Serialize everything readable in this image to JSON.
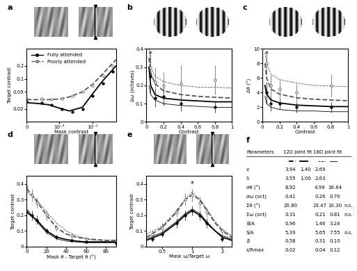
{
  "chart_data": [
    {
      "type": "line",
      "label": "a",
      "x_label": "Mask contrast",
      "y_label": "Target contrast",
      "log": true,
      "legend": "upper left",
      "xlim": [
        0,
        0.5
      ],
      "xticks": [
        0,
        {
          "value": 0.01,
          "label": "10⁻²"
        },
        {
          "value": 0.1,
          "label": "10⁻¹"
        }
      ],
      "ylim": [
        0.01,
        0.5
      ],
      "yticks": [
        0.02,
        0.05,
        0.1,
        0.2
      ],
      "series": [
        {
          "name": "Fully attended",
          "color": "#000000",
          "marker": "filled_circle",
          "line_style": "solid",
          "x": [
            0,
            0.003,
            0.006,
            0.012,
            0.025,
            0.05,
            0.1,
            0.2,
            0.4
          ],
          "values": [
            0.03,
            0.028,
            0.025,
            0.02,
            0.017,
            0.02,
            0.04,
            0.08,
            0.15
          ],
          "fit_x": [
            0,
            0.002,
            0.005,
            0.01,
            0.02,
            0.05,
            0.1,
            0.2,
            0.5
          ],
          "fit_values": [
            0.028,
            0.027,
            0.025,
            0.021,
            0.018,
            0.022,
            0.045,
            0.09,
            0.2
          ]
        },
        {
          "name": "Poorly attended",
          "color": "#555555",
          "marker": "open_circle",
          "line_style": "dashed",
          "x": [
            0,
            0.003,
            0.006,
            0.012,
            0.025,
            0.05,
            0.1,
            0.2,
            0.4
          ],
          "values": [
            0.035,
            0.035,
            0.033,
            0.035,
            0.04,
            0.05,
            0.07,
            0.12,
            0.2
          ],
          "fit_x": [
            0,
            0.002,
            0.005,
            0.01,
            0.02,
            0.05,
            0.1,
            0.2,
            0.5
          ],
          "fit_values": [
            0.033,
            0.033,
            0.033,
            0.034,
            0.038,
            0.05,
            0.075,
            0.13,
            0.28
          ]
        }
      ]
    },
    {
      "type": "line",
      "label": "b",
      "x_label": "Contrast",
      "y_label": "Δω (octaves)",
      "xlim": [
        0,
        1
      ],
      "xticks": [
        0,
        0.2,
        0.4,
        0.6,
        0.8,
        1
      ],
      "ylim": [
        0,
        0.4
      ],
      "yticks": [
        0,
        0.1,
        0.2,
        0.3,
        0.4
      ],
      "annotations": [
        {
          "x": 0.05,
          "y": 0.37,
          "text": "*"
        }
      ],
      "series": [
        {
          "name": "Fully attended",
          "color": "#000000",
          "marker": "filled_circle",
          "line_style": "solid",
          "x": [
            0.05,
            0.1,
            0.2,
            0.4,
            0.8
          ],
          "values": [
            0.25,
            0.13,
            0.14,
            0.1,
            0.08
          ],
          "errors": [
            0.1,
            0.05,
            0.05,
            0.04,
            0.03
          ],
          "fit_x": [
            0.03,
            0.05,
            0.1,
            0.2,
            0.4,
            0.6,
            0.8,
            1
          ],
          "fit_values": [
            0.3,
            0.2,
            0.15,
            0.13,
            0.12,
            0.115,
            0.11,
            0.11
          ],
          "fit18_x": [
            0.03,
            0.05,
            0.1,
            0.2,
            0.4,
            0.6,
            0.8,
            1
          ],
          "fit18_values": [
            0.2,
            0.15,
            0.12,
            0.1,
            0.09,
            0.085,
            0.08,
            0.08
          ]
        },
        {
          "name": "Poorly attended",
          "color": "#555555",
          "marker": "open_circle",
          "line_style": "dashed",
          "x": [
            0.05,
            0.1,
            0.2,
            0.4,
            0.8
          ],
          "values": [
            0.3,
            0.22,
            0.2,
            0.21,
            0.23
          ],
          "errors": [
            0.08,
            0.08,
            0.07,
            0.1,
            0.08
          ],
          "fit_x": [
            0.03,
            0.05,
            0.1,
            0.2,
            0.4,
            0.6,
            0.8,
            1
          ],
          "fit_values": [
            0.35,
            0.27,
            0.21,
            0.17,
            0.15,
            0.14,
            0.135,
            0.13
          ],
          "fit18_x": [
            0.03,
            0.05,
            0.1,
            0.2,
            0.4,
            0.6,
            0.8,
            1
          ],
          "fit18_values": [
            0.4,
            0.3,
            0.25,
            0.22,
            0.2,
            0.19,
            0.19,
            0.185
          ]
        }
      ]
    },
    {
      "type": "line",
      "label": "c",
      "x_label": "Contrast",
      "y_label": "Δθ (°)",
      "xlim": [
        0,
        1
      ],
      "xticks": [
        0,
        0.2,
        0.4,
        0.6,
        0.8,
        1
      ],
      "ylim": [
        0,
        10
      ],
      "yticks": [
        0,
        2,
        4,
        6,
        8,
        10
      ],
      "annotations": [
        {
          "x": 0.05,
          "y": 9.3,
          "text": "*"
        }
      ],
      "series": [
        {
          "name": "Fully attended",
          "color": "#000000",
          "marker": "filled_circle",
          "line_style": "solid",
          "x": [
            0.05,
            0.1,
            0.2,
            0.4,
            0.8
          ],
          "values": [
            4,
            2.5,
            2.5,
            2,
            2
          ],
          "errors": [
            1.5,
            1,
            0.8,
            0.7,
            0.7
          ],
          "fit_x": [
            0.03,
            0.05,
            0.1,
            0.2,
            0.4,
            0.6,
            0.8,
            1
          ],
          "fit_values": [
            5,
            3.8,
            3,
            2.6,
            2.3,
            2.2,
            2.1,
            2.1
          ],
          "fit18_x": [
            0.03,
            0.05,
            0.1,
            0.2,
            0.4,
            0.6,
            0.8,
            1
          ],
          "fit18_values": [
            3.5,
            2.5,
            2,
            1.7,
            1.5,
            1.5,
            1.4,
            1.4
          ]
        },
        {
          "name": "Poorly attended",
          "color": "#555555",
          "marker": "open_circle",
          "line_style": "dashed",
          "x": [
            0.05,
            0.1,
            0.2,
            0.4,
            0.8
          ],
          "values": [
            8,
            5,
            4.5,
            4,
            5
          ],
          "errors": [
            1.5,
            1.5,
            1.2,
            1.2,
            1.5
          ],
          "fit_x": [
            0.03,
            0.05,
            0.1,
            0.2,
            0.4,
            0.6,
            0.8,
            1
          ],
          "fit_values": [
            8,
            6,
            4.5,
            3.8,
            3.3,
            3.1,
            3,
            2.9
          ],
          "fit18_x": [
            0.03,
            0.05,
            0.1,
            0.2,
            0.4,
            0.6,
            0.8,
            1
          ],
          "fit18_values": [
            9.5,
            8,
            6.5,
            5.8,
            5.3,
            5,
            4.9,
            4.8
          ]
        }
      ]
    },
    {
      "type": "line",
      "label": "d",
      "x_label": "Mask θ - Target θ (°)",
      "y_label": "Target contrast",
      "xlim": [
        0,
        90
      ],
      "xticks": [
        0,
        20,
        40,
        60,
        80
      ],
      "ylim": [
        0,
        0.45
      ],
      "yticks": [
        0,
        0.1,
        0.2,
        0.3,
        0.4
      ],
      "series": [
        {
          "name": "Fully attended",
          "color": "#000000",
          "marker": "filled_circle",
          "line_style": "solid",
          "x": [
            0,
            5,
            10,
            20,
            30,
            45,
            60,
            90
          ],
          "values": [
            0.22,
            0.2,
            0.17,
            0.1,
            0.06,
            0.04,
            0.03,
            0.02
          ],
          "errors": [
            0.03,
            0.03,
            0.03,
            0.02,
            0.015,
            0.01,
            0.01,
            0.01
          ],
          "fit_x": [
            0,
            10,
            20,
            30,
            40,
            50,
            60,
            70,
            80,
            90
          ],
          "fit_values": [
            0.22,
            0.17,
            0.1,
            0.06,
            0.045,
            0.035,
            0.03,
            0.03,
            0.03,
            0.03
          ],
          "fit18_x": [
            0,
            10,
            20,
            30,
            40,
            50,
            60,
            70,
            80,
            90
          ],
          "fit18_values": [
            0.24,
            0.16,
            0.09,
            0.05,
            0.035,
            0.03,
            0.025,
            0.025,
            0.025,
            0.025
          ]
        },
        {
          "name": "Poorly attended",
          "color": "#555555",
          "marker": "open_circle",
          "line_style": "dashed",
          "x": [
            0,
            5,
            10,
            20,
            30,
            45,
            60,
            90
          ],
          "values": [
            0.38,
            0.33,
            0.28,
            0.2,
            0.12,
            0.07,
            0.05,
            0.04
          ],
          "errors": [
            0.04,
            0.04,
            0.03,
            0.03,
            0.02,
            0.015,
            0.01,
            0.01
          ],
          "fit_x": [
            0,
            10,
            20,
            30,
            40,
            50,
            60,
            70,
            80,
            90
          ],
          "fit_values": [
            0.37,
            0.29,
            0.2,
            0.12,
            0.08,
            0.06,
            0.05,
            0.045,
            0.04,
            0.04
          ],
          "fit18_x": [
            0,
            10,
            20,
            30,
            40,
            50,
            60,
            70,
            80,
            90
          ],
          "fit18_values": [
            0.35,
            0.3,
            0.22,
            0.15,
            0.1,
            0.07,
            0.05,
            0.04,
            0.04,
            0.04
          ]
        }
      ]
    },
    {
      "type": "line",
      "label": "e",
      "x_label": "Mask ω/Target ω",
      "y_label": "Target contrast",
      "log": "x",
      "xlim": [
        0.35,
        2.5
      ],
      "xticks": [
        0.5,
        1,
        2
      ],
      "ylim": [
        0,
        0.45
      ],
      "yticks": [
        0,
        0.1,
        0.2,
        0.3,
        0.4
      ],
      "annotations": [
        {
          "x": 1,
          "y": 0.4,
          "text": "*"
        }
      ],
      "series": [
        {
          "name": "Fully attended",
          "color": "#000000",
          "marker": "filled_circle",
          "line_style": "solid",
          "x": [
            0.4,
            0.5,
            0.7,
            0.85,
            1,
            1.2,
            1.4,
            2
          ],
          "values": [
            0.05,
            0.08,
            0.15,
            0.2,
            0.23,
            0.2,
            0.15,
            0.05
          ],
          "errors": [
            0.02,
            0.02,
            0.03,
            0.03,
            0.03,
            0.03,
            0.03,
            0.02
          ],
          "fit_x": [
            0.35,
            0.5,
            0.7,
            0.85,
            1,
            1.2,
            1.4,
            1.7,
            2,
            2.5
          ],
          "fit_values": [
            0.04,
            0.08,
            0.15,
            0.2,
            0.23,
            0.2,
            0.15,
            0.1,
            0.06,
            0.04
          ],
          "fit18_x": [
            0.35,
            0.5,
            0.7,
            0.85,
            1,
            1.2,
            1.4,
            1.7,
            2,
            2.5
          ],
          "fit18_values": [
            0.05,
            0.09,
            0.16,
            0.21,
            0.24,
            0.21,
            0.16,
            0.1,
            0.07,
            0.05
          ]
        },
        {
          "name": "Poorly attended",
          "color": "#555555",
          "marker": "open_circle",
          "line_style": "dashed",
          "x": [
            0.4,
            0.5,
            0.7,
            0.85,
            1,
            1.2,
            1.4,
            2
          ],
          "values": [
            0.08,
            0.12,
            0.22,
            0.3,
            0.33,
            0.28,
            0.22,
            0.1
          ],
          "errors": [
            0.02,
            0.03,
            0.03,
            0.04,
            0.04,
            0.04,
            0.03,
            0.02
          ],
          "fit_x": [
            0.35,
            0.5,
            0.7,
            0.85,
            1,
            1.2,
            1.4,
            1.7,
            2,
            2.5
          ],
          "fit_values": [
            0.06,
            0.12,
            0.22,
            0.3,
            0.33,
            0.3,
            0.23,
            0.15,
            0.1,
            0.06
          ],
          "fit18_x": [
            0.35,
            0.5,
            0.7,
            0.85,
            1,
            1.2,
            1.4,
            1.7,
            2,
            2.5
          ],
          "fit18_values": [
            0.08,
            0.13,
            0.23,
            0.3,
            0.35,
            0.3,
            0.24,
            0.16,
            0.11,
            0.07
          ]
        }
      ]
    }
  ],
  "table": {
    "label": "f",
    "columns": [
      "Parameters",
      "12D joint fit",
      "18D joint fit"
    ],
    "rows": [
      [
        "γ",
        "3.94",
        "1.40",
        "2.69",
        null,
        null
      ],
      [
        "δ",
        "3.55",
        "1.00",
        "2.63",
        null,
        null
      ],
      [
        "σθ (°)",
        "8.92",
        null,
        "4.99",
        "16.64",
        null
      ],
      [
        "σω (oct)",
        "0.41",
        null,
        "0.26",
        "0.70",
        null
      ],
      [
        "Σθ (°)",
        "20.80",
        null,
        "23.47",
        "10.30",
        "n.s."
      ],
      [
        "Σω (oct)",
        "0.31",
        null,
        "0.21",
        "0.81",
        "n.s."
      ],
      [
        "B/A",
        "0.96",
        null,
        "1.46",
        "3.24",
        null
      ],
      [
        "S/A",
        "5.39",
        null,
        "5.65",
        "7.55",
        "n.s."
      ],
      [
        "β",
        "0.58",
        null,
        "0.31",
        "0.10",
        null
      ],
      [
        "ε/Rmax",
        "0.02",
        null,
        "0.04",
        "0.12",
        null
      ]
    ]
  }
}
